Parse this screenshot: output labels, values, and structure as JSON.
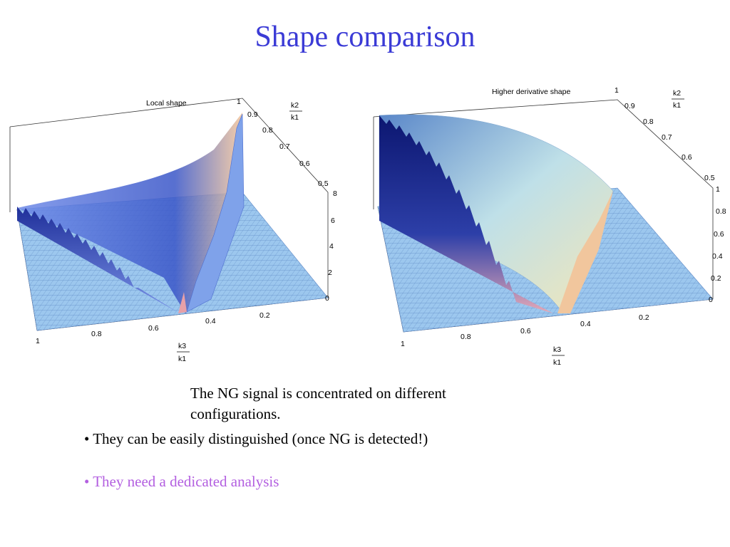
{
  "slide": {
    "title": "Shape comparison",
    "caption": "The NG signal is concentrated on different configurations.",
    "bullets": [
      "• They can be easily distinguished (once NG is detected!)",
      "• They need a dedicated analysis"
    ],
    "bullet_colors": [
      "#000000",
      "#b35fe0"
    ]
  },
  "chart_data": [
    {
      "type": "surface3d",
      "title": "Local shape",
      "x_axis": {
        "label_num": "k3",
        "label_den": "k1",
        "ticks": [
          "1",
          "0.8",
          "0.6",
          "0.4",
          "0.2"
        ]
      },
      "y_axis": {
        "label_num": "k2",
        "label_den": "k1",
        "ticks": [
          "1",
          "0.9",
          "0.8",
          "0.7",
          "0.6",
          "0.5"
        ]
      },
      "z_axis": {
        "ticks": [
          "0",
          "2",
          "4",
          "6",
          "8"
        ],
        "range": [
          0,
          8
        ]
      }
    },
    {
      "type": "surface3d",
      "title": "Higher derivative  shape",
      "x_axis": {
        "label_num": "k3",
        "label_den": "k1",
        "ticks": [
          "1",
          "0.8",
          "0.6",
          "0.4",
          "0.2"
        ]
      },
      "y_axis": {
        "label_num": "k2",
        "label_den": "k1",
        "ticks": [
          "1",
          "0.9",
          "0.8",
          "0.7",
          "0.6",
          "0.5"
        ]
      },
      "z_axis": {
        "ticks": [
          "0",
          "0.2",
          "0.4",
          "0.6",
          "0.8",
          "1"
        ],
        "range": [
          0,
          1
        ]
      }
    }
  ]
}
